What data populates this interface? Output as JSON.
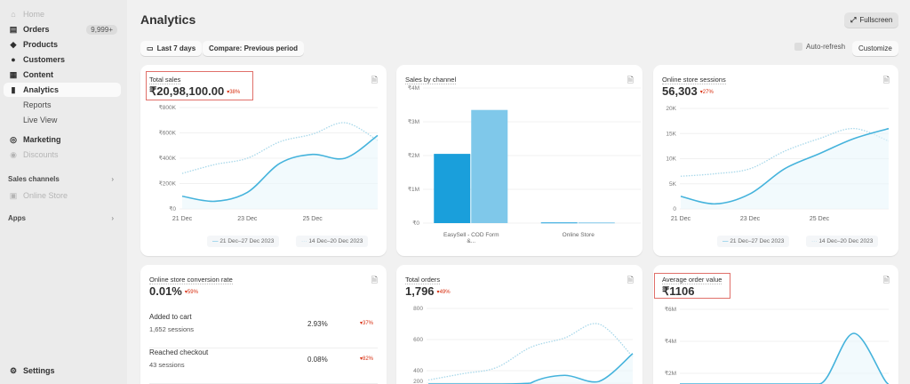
{
  "sidebar": {
    "items": [
      {
        "label": "Home",
        "icon": "home-icon",
        "dim": true
      },
      {
        "label": "Orders",
        "icon": "inbox-icon",
        "badge": "9,999+"
      },
      {
        "label": "Products",
        "icon": "tag-icon"
      },
      {
        "label": "Customers",
        "icon": "person-icon"
      },
      {
        "label": "Content",
        "icon": "image-icon"
      },
      {
        "label": "Analytics",
        "icon": "bar-chart-icon",
        "active": true
      },
      {
        "label": "Reports",
        "sub": true
      },
      {
        "label": "Live View",
        "sub": true
      },
      {
        "label": "Marketing",
        "icon": "target-icon"
      },
      {
        "label": "Discounts",
        "icon": "discount-icon",
        "dim": true
      }
    ],
    "sales_channels": "Sales channels",
    "online_store": "Online Store",
    "apps": "Apps",
    "settings": "Settings"
  },
  "header": {
    "title": "Analytics",
    "fullscreen": "Fullscreen",
    "date_range": "Last 7 days",
    "compare": "Compare: Previous period",
    "auto_refresh": "Auto-refresh",
    "customize": "Customize"
  },
  "colors": {
    "current": "#45b3dc",
    "previous": "#a8d8ea",
    "bar_current": "#1a9fdb",
    "bar_previous": "#7fc8ea",
    "delta": "#d72c0d"
  },
  "cards": {
    "total_sales": {
      "title": "Total sales",
      "value": "₹20,98,100.00",
      "delta": "38%"
    },
    "sales_by_channel": {
      "title": "Sales by channel"
    },
    "sessions": {
      "title": "Online store sessions",
      "value": "56,303",
      "delta": "27%"
    },
    "conversion": {
      "title": "Online store conversion rate",
      "value": "0.01%",
      "delta": "59%",
      "rows": [
        {
          "label": "Added to cart",
          "sub": "1,652 sessions",
          "pct": "2.93%",
          "delta": "37%"
        },
        {
          "label": "Reached checkout",
          "sub": "43 sessions",
          "pct": "0.08%",
          "delta": "82%"
        }
      ]
    },
    "orders": {
      "title": "Total orders",
      "value": "1,796",
      "delta": "49%"
    },
    "aov": {
      "title": "Average order value",
      "value": "₹1106"
    }
  },
  "legend": {
    "current": "21 Dec–27 Dec 2023",
    "previous": "14 Dec–20 Dec 2023"
  },
  "chart_data": [
    {
      "id": "total_sales",
      "type": "line",
      "x": [
        "21 Dec",
        "22 Dec",
        "23 Dec",
        "24 Dec",
        "25 Dec",
        "26 Dec",
        "27 Dec"
      ],
      "xticks": [
        "21 Dec",
        "23 Dec",
        "25 Dec"
      ],
      "yticks": [
        "₹0",
        "₹200K",
        "₹400K",
        "₹600K",
        "₹800K"
      ],
      "ylim": [
        0,
        800000
      ],
      "series": [
        {
          "name": "21 Dec–27 Dec 2023",
          "values": [
            100000,
            60000,
            130000,
            360000,
            430000,
            400000,
            580000
          ]
        },
        {
          "name": "14 Dec–20 Dec 2023",
          "values": [
            280000,
            350000,
            400000,
            530000,
            590000,
            680000,
            540000
          ]
        }
      ]
    },
    {
      "id": "sales_by_channel",
      "type": "bar",
      "categories": [
        "EasySell - COD Form &...",
        "Online Store"
      ],
      "yticks": [
        "₹0",
        "₹1M",
        "₹2M",
        "₹3M",
        "₹4M"
      ],
      "ylim": [
        0,
        4000000
      ],
      "series": [
        {
          "name": "21 Dec–27 Dec 2023",
          "values": [
            2050000,
            20000
          ]
        },
        {
          "name": "14 Dec–20 Dec 2023",
          "values": [
            3350000,
            20000
          ]
        }
      ]
    },
    {
      "id": "sessions",
      "type": "line",
      "x": [
        "21 Dec",
        "22 Dec",
        "23 Dec",
        "24 Dec",
        "25 Dec",
        "26 Dec",
        "27 Dec"
      ],
      "xticks": [
        "21 Dec",
        "23 Dec",
        "25 Dec"
      ],
      "yticks": [
        "0",
        "5K",
        "10K",
        "15K",
        "20K"
      ],
      "ylim": [
        0,
        20000
      ],
      "series": [
        {
          "name": "21 Dec–27 Dec 2023",
          "values": [
            2500,
            1000,
            3000,
            8000,
            11000,
            14000,
            16000
          ]
        },
        {
          "name": "14 Dec–20 Dec 2023",
          "values": [
            6500,
            7000,
            8000,
            11500,
            14000,
            16000,
            13500
          ]
        }
      ]
    },
    {
      "id": "orders",
      "type": "line",
      "x": [
        "21 Dec",
        "22 Dec",
        "23 Dec",
        "24 Dec",
        "25 Dec",
        "26 Dec",
        "27 Dec"
      ],
      "yticks": [
        "200",
        "400",
        "600",
        "800"
      ],
      "ylim": [
        0,
        800
      ],
      "series": [
        {
          "name": "21 Dec–27 Dec 2023",
          "values": [
            120,
            80,
            150,
            320,
            370,
            330,
            510
          ]
        },
        {
          "name": "14 Dec–20 Dec 2023",
          "values": [
            340,
            380,
            420,
            550,
            610,
            700,
            490
          ]
        }
      ]
    },
    {
      "id": "aov",
      "type": "line",
      "x": [
        "21 Dec",
        "22 Dec",
        "23 Dec",
        "24 Dec",
        "25 Dec",
        "26 Dec",
        "27 Dec"
      ],
      "yticks": [
        "₹2M",
        "₹4M",
        "₹6M"
      ],
      "ylim": [
        0,
        6000000
      ],
      "series": [
        {
          "name": "21 Dec–27 Dec 2023",
          "values": [
            0,
            0,
            0,
            0,
            0,
            4500000,
            0
          ]
        }
      ]
    }
  ]
}
